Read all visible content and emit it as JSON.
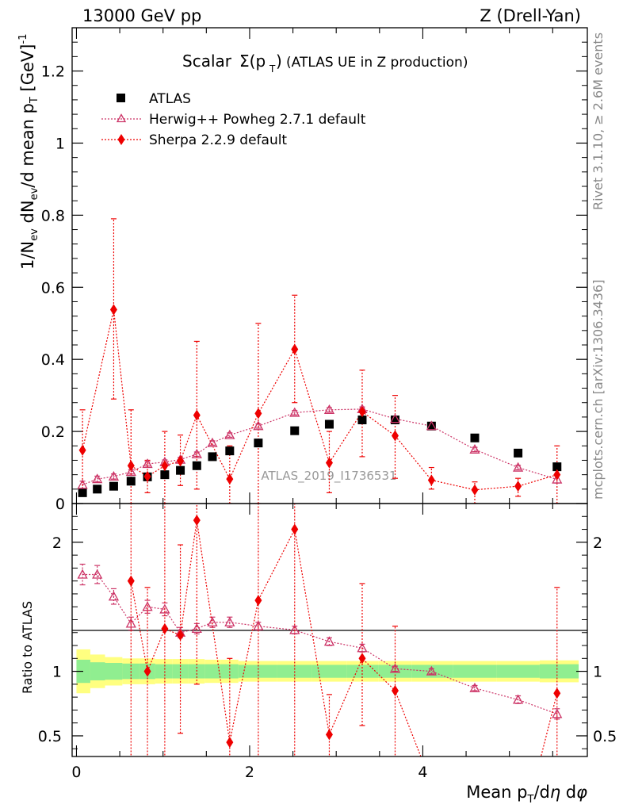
{
  "header": {
    "left": "13000 GeV pp",
    "right": "Z (Drell-Yan)"
  },
  "side_texts": {
    "rivet": "Rivet 3.1.10, ≥ 2.6M events",
    "mcplots": "mcplots.cern.ch [arXiv:1306.3436]"
  },
  "colors": {
    "atlas": "#000000",
    "herwig": "#cc3366",
    "sherpa": "#ee0000",
    "band_inner": "#90ee90",
    "band_outer": "#ffff80"
  },
  "chart_data": [
    {
      "type": "scatter",
      "panel": "main",
      "title": "Scalar Σ(p_T) (ATLAS UE in Z production)",
      "title_main": "Scalar",
      "title_sigma": "Σ(p",
      "title_sub": "T",
      "title_close": ")",
      "title_rest": "(ATLAS UE in Z production)",
      "analysis_label": "ATLAS_2019_I1736531",
      "ylabel": "1/N_ev dN_ev/d mean p_T [GeV]^-1",
      "ylim": [
        0,
        1.32
      ],
      "yticks": [
        0,
        0.2,
        0.4,
        0.6,
        0.8,
        1,
        1.2
      ],
      "ytick_labels": [
        "0",
        "0.2",
        "0.4",
        "0.6",
        "0.8",
        "1",
        "1.2"
      ],
      "xlim": [
        -0.05,
        5.9
      ],
      "legend": [
        "ATLAS",
        "Herwig++ Powheg 2.7.1 default",
        "Sherpa 2.2.9 default"
      ],
      "series": [
        {
          "name": "ATLAS",
          "marker": "square",
          "x": [
            0.07,
            0.24,
            0.43,
            0.63,
            0.82,
            1.02,
            1.2,
            1.39,
            1.57,
            1.77,
            2.1,
            2.52,
            2.92,
            3.3,
            3.68,
            4.1,
            4.6,
            5.1,
            5.55
          ],
          "y": [
            0.03,
            0.04,
            0.048,
            0.062,
            0.074,
            0.08,
            0.092,
            0.105,
            0.13,
            0.146,
            0.168,
            0.202,
            0.22,
            0.232,
            0.232,
            0.215,
            0.182,
            0.14,
            0.102
          ]
        },
        {
          "name": "Herwig++ Powheg 2.7.1 default",
          "marker": "triangle-open",
          "x": [
            0.07,
            0.24,
            0.43,
            0.63,
            0.82,
            1.02,
            1.2,
            1.39,
            1.57,
            1.77,
            2.1,
            2.52,
            2.92,
            3.3,
            3.68,
            4.1,
            4.6,
            5.1,
            5.55
          ],
          "y": [
            0.052,
            0.068,
            0.075,
            0.088,
            0.11,
            0.115,
            0.122,
            0.137,
            0.168,
            0.19,
            0.215,
            0.252,
            0.26,
            0.262,
            0.235,
            0.215,
            0.15,
            0.1,
            0.067
          ],
          "yerr": [
            0.01,
            0.008,
            0.007,
            0.006,
            0.006,
            0.006,
            0.006,
            0.006,
            0.006,
            0.006,
            0.006,
            0.006,
            0.006,
            0.006,
            0.006,
            0.006,
            0.006,
            0.006,
            0.01
          ]
        },
        {
          "name": "Sherpa 2.2.9 default",
          "marker": "diamond",
          "x": [
            0.07,
            0.43,
            0.63,
            0.82,
            1.02,
            1.2,
            1.39,
            1.77,
            2.1,
            2.52,
            2.92,
            3.3,
            3.68,
            4.1,
            4.6,
            5.1,
            5.55
          ],
          "y": [
            0.148,
            0.538,
            0.105,
            0.075,
            0.105,
            0.118,
            0.245,
            0.068,
            0.25,
            0.428,
            0.113,
            0.255,
            0.188,
            0.065,
            0.038,
            0.048,
            0.08
          ],
          "ylo": [
            0.04,
            0.29,
            0.0,
            0.03,
            0.0,
            0.05,
            0.04,
            0.0,
            0.0,
            0.28,
            0.03,
            0.13,
            0.07,
            0.04,
            0.0,
            0.02,
            0.0
          ],
          "yhi": [
            0.26,
            0.79,
            0.26,
            0.12,
            0.2,
            0.19,
            0.45,
            0.16,
            0.5,
            0.578,
            0.2,
            0.37,
            0.3,
            0.1,
            0.06,
            0.07,
            0.16
          ]
        }
      ]
    },
    {
      "type": "scatter",
      "panel": "ratio",
      "ylabel": "Ratio to ATLAS",
      "xlabel": "Mean p_T/dη dφ",
      "ylim": [
        0.34,
        2.3
      ],
      "yticks": [
        0.5,
        1,
        2
      ],
      "ytick_labels": [
        "0.5",
        "1",
        "2"
      ],
      "xlim": [
        -0.05,
        5.9
      ],
      "xticks": [
        0,
        2,
        4
      ],
      "xtick_labels": [
        "0",
        "2",
        "4"
      ],
      "bands": {
        "edges": [
          0,
          0.16,
          0.33,
          0.53,
          0.72,
          0.91,
          1.11,
          1.29,
          1.48,
          1.67,
          1.87,
          2.32,
          2.72,
          3.12,
          3.49,
          3.87,
          4.35,
          4.85,
          5.35,
          5.8
        ],
        "inner": [
          0.09,
          0.07,
          0.065,
          0.06,
          0.06,
          0.055,
          0.055,
          0.055,
          0.055,
          0.055,
          0.05,
          0.05,
          0.05,
          0.05,
          0.05,
          0.05,
          0.05,
          0.05,
          0.055
        ],
        "outer": [
          0.17,
          0.13,
          0.11,
          0.1,
          0.1,
          0.095,
          0.095,
          0.095,
          0.09,
          0.09,
          0.08,
          0.08,
          0.08,
          0.08,
          0.08,
          0.08,
          0.08,
          0.08,
          0.085
        ]
      },
      "series": [
        {
          "name": "Herwig++ Powheg 2.7.1 default",
          "marker": "triangle-open",
          "x": [
            0.07,
            0.24,
            0.43,
            0.63,
            0.82,
            1.02,
            1.2,
            1.39,
            1.57,
            1.77,
            2.1,
            2.52,
            2.92,
            3.3,
            3.68,
            4.1,
            4.6,
            5.1,
            5.55
          ],
          "y": [
            1.75,
            1.75,
            1.58,
            1.37,
            1.5,
            1.48,
            1.3,
            1.33,
            1.38,
            1.38,
            1.35,
            1.32,
            1.23,
            1.18,
            1.02,
            1.0,
            0.87,
            0.78,
            0.67
          ],
          "yerr": [
            0.08,
            0.07,
            0.06,
            0.05,
            0.05,
            0.05,
            0.04,
            0.04,
            0.04,
            0.04,
            0.03,
            0.03,
            0.03,
            0.03,
            0.02,
            0.02,
            0.02,
            0.03,
            0.04
          ]
        },
        {
          "name": "Sherpa 2.2.9 default",
          "marker": "diamond",
          "x": [
            0.63,
            0.82,
            1.02,
            1.2,
            1.39,
            1.77,
            2.1,
            2.52,
            2.92,
            3.3,
            3.68,
            4.0,
            5.35,
            5.55
          ],
          "y": [
            1.7,
            1.0,
            1.33,
            1.28,
            2.17,
            0.45,
            1.55,
            2.1,
            0.51,
            1.1,
            0.85,
            0.3,
            0.3,
            0.83
          ],
          "ylo": [
            0.3,
            0.3,
            0.3,
            0.52,
            0.9,
            0.3,
            0.3,
            0.3,
            0.3,
            0.58,
            0.3,
            0.3,
            0.3,
            0.3
          ],
          "yhi": [
            2.4,
            1.65,
            2.4,
            1.98,
            2.4,
            1.1,
            2.4,
            2.4,
            0.82,
            1.68,
            1.35,
            0.3,
            0.3,
            1.65
          ],
          "draw_marker": [
            true,
            true,
            true,
            true,
            true,
            true,
            true,
            true,
            true,
            true,
            true,
            false,
            false,
            true
          ]
        }
      ]
    }
  ]
}
